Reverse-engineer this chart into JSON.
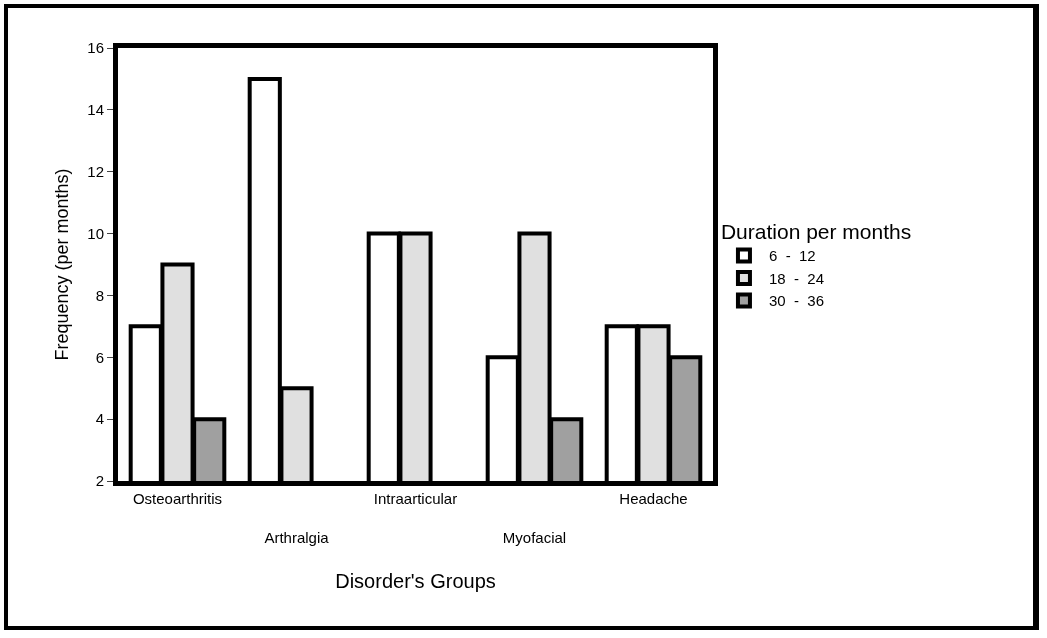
{
  "chart_data": {
    "type": "bar",
    "xlabel": "Disorder's Groups",
    "ylabel": "Frequency (per months)",
    "legend_title": "Duration per months",
    "categories": [
      "Osteoarthritis",
      "Arthralgia",
      "Intraarticular",
      "Myofacial",
      "Headache"
    ],
    "series": [
      {
        "name": "6  -  12",
        "color": "#ffffff",
        "values": [
          7,
          15,
          10,
          6,
          7
        ]
      },
      {
        "name": "18  -  24",
        "color": "#e0e0e0",
        "values": [
          9,
          5,
          10,
          10,
          7
        ]
      },
      {
        "name": "30  -  36",
        "color": "#a0a0a0",
        "values": [
          4,
          null,
          null,
          4,
          6
        ]
      }
    ],
    "ylim": [
      2,
      16
    ],
    "yticks": [
      2,
      4,
      6,
      8,
      10,
      12,
      14,
      16
    ],
    "grid": false,
    "legend": "right"
  }
}
